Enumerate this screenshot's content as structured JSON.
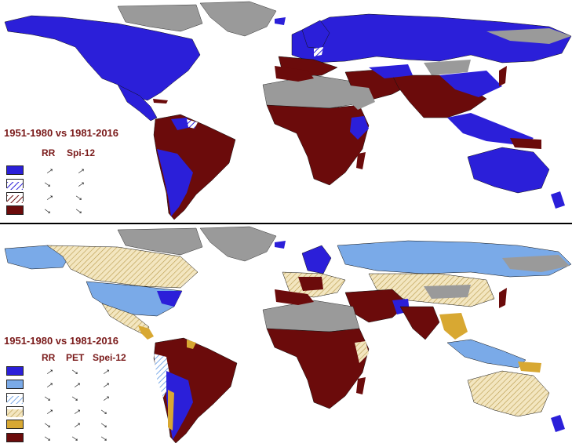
{
  "colors": {
    "ocean": "#ffffff",
    "no_data": "#9a9a9a",
    "blue": "#2b1fd9",
    "light_blue": "#7aaae8",
    "dark_red": "#6b0b0b",
    "gold": "#d8a832",
    "beige_hatch": "#e8d49a",
    "title": "#7a1a1a"
  },
  "top_panel": {
    "title": "1951-1980 vs 1981-2016",
    "headers": [
      "RR",
      "Spi-12"
    ],
    "rows": [
      {
        "swatch": "blue-solid",
        "trends": [
          "up",
          "up"
        ]
      },
      {
        "swatch": "blue-hatch",
        "trends": [
          "down",
          "up"
        ]
      },
      {
        "swatch": "red-hatch",
        "trends": [
          "up",
          "down"
        ]
      },
      {
        "swatch": "red-solid",
        "trends": [
          "down",
          "down"
        ]
      }
    ]
  },
  "bottom_panel": {
    "title": "1951-1980 vs 1981-2016",
    "headers": [
      "RR",
      "PET",
      "Spei-12"
    ],
    "rows": [
      {
        "swatch": "blue-solid",
        "trends": [
          "up",
          "down",
          "up"
        ]
      },
      {
        "swatch": "light-blue-solid",
        "trends": [
          "up",
          "up",
          "up"
        ]
      },
      {
        "swatch": "light-blue-hatch",
        "trends": [
          "down",
          "down",
          "up"
        ]
      },
      {
        "swatch": "beige-hatch",
        "trends": [
          "up",
          "up",
          "down"
        ]
      },
      {
        "swatch": "gold-solid",
        "trends": [
          "down",
          "up",
          "down"
        ]
      },
      {
        "swatch": "red-solid",
        "trends": [
          "down",
          "down",
          "down"
        ]
      }
    ]
  }
}
